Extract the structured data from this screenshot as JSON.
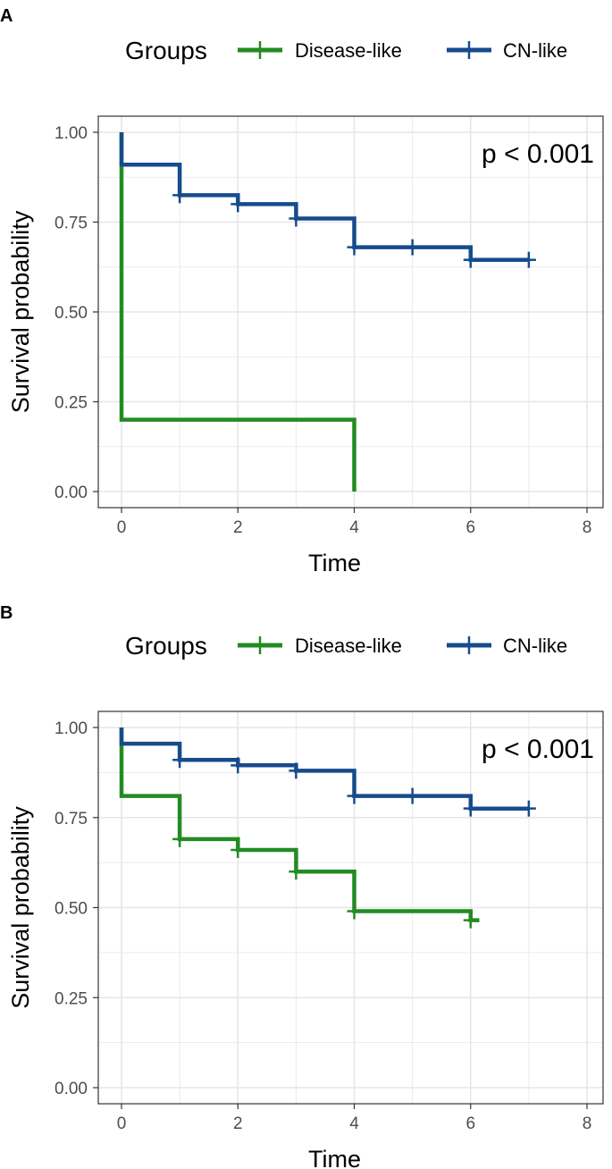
{
  "colors": {
    "disease": "#228b22",
    "cn": "#164b8c",
    "grid": "#e6e6e6",
    "frame": "#333333"
  },
  "chart_data": [
    {
      "panel": "A",
      "type": "line",
      "subtype": "kaplan-meier step",
      "legend_title": "Groups",
      "legend_position": "top",
      "xlabel": "Time",
      "ylabel": "Survival probability",
      "xlim": [
        0,
        8
      ],
      "ylim": [
        0,
        1
      ],
      "x_ticks": [
        "0",
        "2",
        "4",
        "6",
        "8"
      ],
      "y_ticks": [
        "0.00",
        "0.25",
        "0.50",
        "0.75",
        "1.00"
      ],
      "annotation": "p < 0.001",
      "series": [
        {
          "name": "Disease-like",
          "color_key": "disease",
          "steps": [
            [
              0,
              1.0
            ],
            [
              0,
              0.2
            ],
            [
              4,
              0.2
            ],
            [
              4,
              0.0
            ]
          ],
          "censor": []
        },
        {
          "name": "CN-like",
          "color_key": "cn",
          "steps": [
            [
              0,
              1.0
            ],
            [
              0,
              0.91
            ],
            [
              1,
              0.91
            ],
            [
              1,
              0.825
            ],
            [
              2,
              0.825
            ],
            [
              2,
              0.8
            ],
            [
              3,
              0.8
            ],
            [
              3,
              0.76
            ],
            [
              4,
              0.76
            ],
            [
              4,
              0.68
            ],
            [
              6,
              0.68
            ],
            [
              6,
              0.645
            ],
            [
              7,
              0.645
            ]
          ],
          "censor": [
            [
              1,
              0.825
            ],
            [
              2,
              0.8
            ],
            [
              3,
              0.76
            ],
            [
              4,
              0.68
            ],
            [
              5,
              0.68
            ],
            [
              6,
              0.645
            ],
            [
              7,
              0.645
            ]
          ]
        }
      ]
    },
    {
      "panel": "B",
      "type": "line",
      "subtype": "kaplan-meier step",
      "legend_title": "Groups",
      "legend_position": "top",
      "xlabel": "Time",
      "ylabel": "Survival probability",
      "xlim": [
        0,
        8
      ],
      "ylim": [
        0,
        1
      ],
      "x_ticks": [
        "0",
        "2",
        "4",
        "6",
        "8"
      ],
      "y_ticks": [
        "0.00",
        "0.25",
        "0.50",
        "0.75",
        "1.00"
      ],
      "annotation": "p < 0.001",
      "series": [
        {
          "name": "Disease-like",
          "color_key": "disease",
          "steps": [
            [
              0,
              1.0
            ],
            [
              0,
              0.81
            ],
            [
              1,
              0.81
            ],
            [
              1,
              0.69
            ],
            [
              2,
              0.69
            ],
            [
              2,
              0.66
            ],
            [
              3,
              0.66
            ],
            [
              3,
              0.6
            ],
            [
              4,
              0.6
            ],
            [
              4,
              0.49
            ],
            [
              6,
              0.49
            ],
            [
              6,
              0.465
            ],
            [
              6.15,
              0.465
            ]
          ],
          "censor": [
            [
              1,
              0.69
            ],
            [
              2,
              0.66
            ],
            [
              3,
              0.6
            ],
            [
              4,
              0.49
            ],
            [
              6,
              0.465
            ]
          ]
        },
        {
          "name": "CN-like",
          "color_key": "cn",
          "steps": [
            [
              0,
              1.0
            ],
            [
              0,
              0.955
            ],
            [
              1,
              0.955
            ],
            [
              1,
              0.91
            ],
            [
              2,
              0.91
            ],
            [
              2,
              0.895
            ],
            [
              3,
              0.895
            ],
            [
              3,
              0.88
            ],
            [
              4,
              0.88
            ],
            [
              4,
              0.81
            ],
            [
              6,
              0.81
            ],
            [
              6,
              0.775
            ],
            [
              7,
              0.775
            ]
          ],
          "censor": [
            [
              1,
              0.91
            ],
            [
              2,
              0.895
            ],
            [
              3,
              0.88
            ],
            [
              4,
              0.81
            ],
            [
              5,
              0.81
            ],
            [
              6,
              0.775
            ],
            [
              7,
              0.775
            ]
          ]
        }
      ]
    }
  ]
}
